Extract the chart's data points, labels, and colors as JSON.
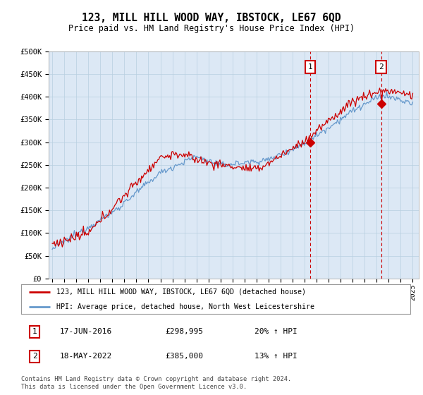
{
  "title": "123, MILL HILL WOOD WAY, IBSTOCK, LE67 6QD",
  "subtitle": "Price paid vs. HM Land Registry's House Price Index (HPI)",
  "ylim": [
    0,
    500000
  ],
  "yticks": [
    0,
    50000,
    100000,
    150000,
    200000,
    250000,
    300000,
    350000,
    400000,
    450000,
    500000
  ],
  "ytick_labels": [
    "£0",
    "£50K",
    "£100K",
    "£150K",
    "£200K",
    "£250K",
    "£300K",
    "£350K",
    "£400K",
    "£450K",
    "£500K"
  ],
  "background_color": "#dce8f5",
  "grid_color": "#b8cfe0",
  "red_line_color": "#cc0000",
  "blue_line_color": "#6699cc",
  "marker1_year": 2016.46,
  "marker1_price": 298995,
  "marker2_year": 2022.37,
  "marker2_price": 385000,
  "legend_line1": "123, MILL HILL WOOD WAY, IBSTOCK, LE67 6QD (detached house)",
  "legend_line2": "HPI: Average price, detached house, North West Leicestershire",
  "annot1_date": "17-JUN-2016",
  "annot1_price": "£298,995",
  "annot1_hpi": "20% ↑ HPI",
  "annot2_date": "18-MAY-2022",
  "annot2_price": "£385,000",
  "annot2_hpi": "13% ↑ HPI",
  "footer": "Contains HM Land Registry data © Crown copyright and database right 2024.\nThis data is licensed under the Open Government Licence v3.0.",
  "x_start_year": 1995,
  "x_end_year": 2025
}
